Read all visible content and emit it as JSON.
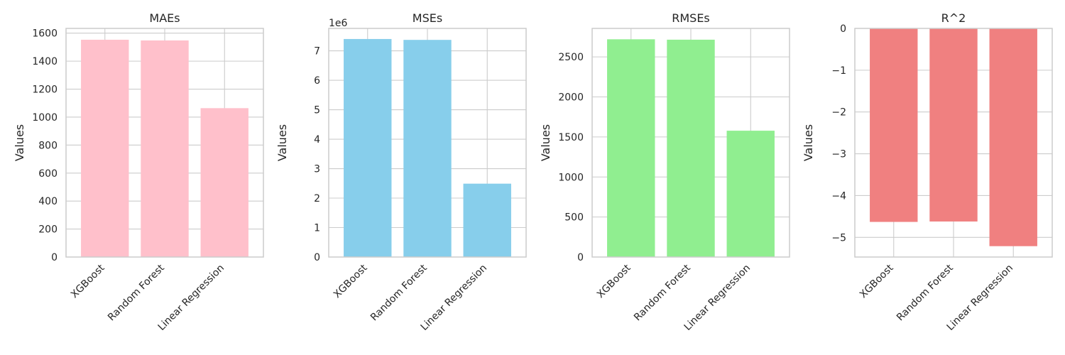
{
  "chart_data": [
    {
      "type": "bar",
      "title": "MAEs",
      "xlabel": "",
      "ylabel": "Values",
      "categories": [
        "XGBoost",
        "Random Forest",
        "Linear Regression"
      ],
      "values": [
        1553,
        1548,
        1064
      ],
      "ylim": [
        0,
        1634
      ],
      "yticks": [
        0,
        200,
        400,
        600,
        800,
        1000,
        1200,
        1400,
        1600
      ],
      "ytick_labels": [
        "0",
        "200",
        "400",
        "600",
        "800",
        "1000",
        "1200",
        "1400",
        "1600"
      ],
      "offset_label": "",
      "color": "#ffc0cb",
      "grid": true
    },
    {
      "type": "bar",
      "title": "MSEs",
      "xlabel": "",
      "ylabel": "Values",
      "categories": [
        "XGBoost",
        "Random Forest",
        "Linear Regression"
      ],
      "values": [
        7400000,
        7370000,
        2490000
      ],
      "ylim": [
        0,
        7760000
      ],
      "yticks": [
        0,
        1000000,
        2000000,
        3000000,
        4000000,
        5000000,
        6000000,
        7000000
      ],
      "ytick_labels": [
        "0",
        "1",
        "2",
        "3",
        "4",
        "5",
        "6",
        "7"
      ],
      "offset_label": "1e6",
      "color": "#87ceeb",
      "grid": true
    },
    {
      "type": "bar",
      "title": "RMSEs",
      "xlabel": "",
      "ylabel": "Values",
      "categories": [
        "XGBoost",
        "Random Forest",
        "Linear Regression"
      ],
      "values": [
        2720,
        2715,
        1578
      ],
      "ylim": [
        0,
        2856
      ],
      "yticks": [
        0,
        500,
        1000,
        1500,
        2000,
        2500
      ],
      "ytick_labels": [
        "0",
        "500",
        "1000",
        "1500",
        "2000",
        "2500"
      ],
      "offset_label": "",
      "color": "#90ee90",
      "grid": true
    },
    {
      "type": "bar",
      "title": "R^2",
      "xlabel": "",
      "ylabel": "Values",
      "categories": [
        "XGBoost",
        "Random Forest",
        "Linear Regression"
      ],
      "values": [
        -4.63,
        -4.62,
        -5.21
      ],
      "ylim": [
        -5.47,
        0
      ],
      "yticks": [
        -5,
        -4,
        -3,
        -2,
        -1,
        0
      ],
      "ytick_labels": [
        "−5",
        "−4",
        "−3",
        "−2",
        "−1",
        "0"
      ],
      "offset_label": "",
      "color": "#f08080",
      "grid": true
    }
  ]
}
